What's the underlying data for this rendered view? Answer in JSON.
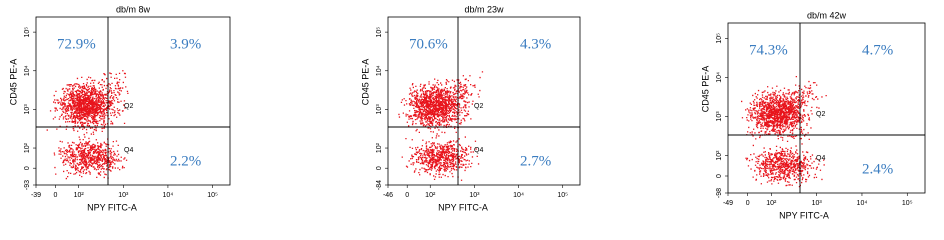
{
  "panels": [
    {
      "title": "db/m 8w",
      "x_label": "NPY FITC-A",
      "y_label": "CD45 PE-A",
      "quadrants": {
        "upper_left": "72.9%",
        "upper_right": "3.9%",
        "lower_right": "2.2%",
        "q2": "Q2",
        "q4": "Q4"
      },
      "x_tick_labels": [
        "-39",
        "0",
        "10²",
        "10³",
        "10⁴",
        "10⁵"
      ],
      "y_tick_labels": [
        "10⁵",
        "10⁴",
        "10³",
        "10²",
        "0",
        "-93"
      ]
    },
    {
      "title": "db/m 23w",
      "x_label": "NPY FITC-A",
      "y_label": "CD45 PE-A",
      "quadrants": {
        "upper_left": "70.6%",
        "upper_right": "4.3%",
        "lower_right": "2.7%",
        "q2": "Q2",
        "q4": "Q4"
      },
      "x_tick_labels": [
        "-46",
        "0",
        "10²",
        "10³",
        "10⁴",
        "10⁵"
      ],
      "y_tick_labels": [
        "10⁵",
        "10⁴",
        "10³",
        "10²",
        "0",
        "-84"
      ]
    },
    {
      "title": "db/m 42w",
      "x_label": "NPY FITC-A",
      "y_label": "CD45 PE-A",
      "quadrants": {
        "upper_left": "74.3%",
        "upper_right": "4.7%",
        "lower_right": "2.4%",
        "q2": "Q2",
        "q4": "Q4"
      },
      "x_tick_labels": [
        "-49",
        "0",
        "10²",
        "10³",
        "10⁴",
        "10⁵"
      ],
      "y_tick_labels": [
        "10⁵",
        "10⁴",
        "10³",
        "10²",
        "0",
        "-98"
      ]
    }
  ]
}
